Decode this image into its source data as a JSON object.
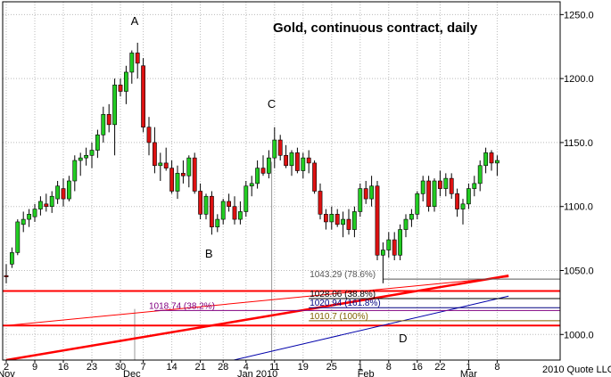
{
  "chart_data": {
    "type": "candlestick",
    "title": "Gold, continuous contract, daily",
    "copyright": "2010 Quote LLC",
    "y_axis": {
      "position": "right",
      "min": 980,
      "max": 1260,
      "ticks": [
        {
          "value": 1000,
          "label": "1000.0"
        },
        {
          "value": 1050,
          "label": "1050.0"
        },
        {
          "value": 1100,
          "label": "1100.0"
        },
        {
          "value": 1150,
          "label": "1150.0"
        },
        {
          "value": 1200,
          "label": "1200.0"
        },
        {
          "value": 1250,
          "label": "1250.0"
        }
      ]
    },
    "x_axis": {
      "day_labels": [
        {
          "i": 0,
          "label": "2"
        },
        {
          "i": 5,
          "label": "9"
        },
        {
          "i": 10,
          "label": "16"
        },
        {
          "i": 15,
          "label": "23"
        },
        {
          "i": 20,
          "label": "30"
        },
        {
          "i": 24,
          "label": "7"
        },
        {
          "i": 29,
          "label": "14"
        },
        {
          "i": 34,
          "label": "21"
        },
        {
          "i": 38,
          "label": "28"
        },
        {
          "i": 42,
          "label": "4"
        },
        {
          "i": 47,
          "label": "11"
        },
        {
          "i": 52,
          "label": "19"
        },
        {
          "i": 57,
          "label": "25"
        },
        {
          "i": 62,
          "label": "1"
        },
        {
          "i": 67,
          "label": "8"
        },
        {
          "i": 72,
          "label": "16"
        },
        {
          "i": 76,
          "label": "22"
        },
        {
          "i": 81,
          "label": "1"
        },
        {
          "i": 86,
          "label": "8"
        }
      ],
      "month_labels": [
        {
          "i": 0,
          "label": "Nov"
        },
        {
          "i": 22,
          "label": "Dec"
        },
        {
          "i": 44,
          "label": "Jan 2010"
        },
        {
          "i": 63,
          "label": "Feb"
        },
        {
          "i": 81,
          "label": "Mar"
        }
      ]
    },
    "candles": [
      [
        1046,
        1055,
        1040,
        1045
      ],
      [
        1055,
        1068,
        1052,
        1064
      ],
      [
        1064,
        1090,
        1062,
        1088
      ],
      [
        1086,
        1096,
        1080,
        1090
      ],
      [
        1090,
        1098,
        1084,
        1094
      ],
      [
        1092,
        1102,
        1088,
        1098
      ],
      [
        1098,
        1108,
        1093,
        1104
      ],
      [
        1102,
        1110,
        1096,
        1100
      ],
      [
        1100,
        1112,
        1095,
        1108
      ],
      [
        1106,
        1120,
        1102,
        1116
      ],
      [
        1114,
        1122,
        1100,
        1106
      ],
      [
        1106,
        1124,
        1104,
        1120
      ],
      [
        1120,
        1140,
        1112,
        1136
      ],
      [
        1136,
        1142,
        1124,
        1138
      ],
      [
        1138,
        1146,
        1132,
        1140
      ],
      [
        1140,
        1150,
        1130,
        1144
      ],
      [
        1144,
        1160,
        1138,
        1156
      ],
      [
        1156,
        1178,
        1150,
        1172
      ],
      [
        1172,
        1180,
        1158,
        1164
      ],
      [
        1164,
        1200,
        1140,
        1195
      ],
      [
        1195,
        1200,
        1186,
        1190
      ],
      [
        1190,
        1210,
        1180,
        1205
      ],
      [
        1205,
        1222,
        1196,
        1220
      ],
      [
        1220,
        1228,
        1200,
        1212
      ],
      [
        1210,
        1216,
        1158,
        1162
      ],
      [
        1162,
        1170,
        1140,
        1150
      ],
      [
        1150,
        1162,
        1126,
        1132
      ],
      [
        1132,
        1142,
        1120,
        1134
      ],
      [
        1134,
        1146,
        1128,
        1130
      ],
      [
        1130,
        1136,
        1110,
        1112
      ],
      [
        1112,
        1132,
        1106,
        1126
      ],
      [
        1126,
        1136,
        1118,
        1124
      ],
      [
        1124,
        1140,
        1115,
        1138
      ],
      [
        1138,
        1142,
        1110,
        1112
      ],
      [
        1112,
        1118,
        1090,
        1094
      ],
      [
        1094,
        1110,
        1090,
        1108
      ],
      [
        1108,
        1112,
        1078,
        1084
      ],
      [
        1084,
        1094,
        1080,
        1090
      ],
      [
        1090,
        1106,
        1086,
        1104
      ],
      [
        1104,
        1110,
        1096,
        1100
      ],
      [
        1100,
        1108,
        1086,
        1090
      ],
      [
        1090,
        1104,
        1086,
        1096
      ],
      [
        1096,
        1120,
        1092,
        1116
      ],
      [
        1116,
        1124,
        1108,
        1118
      ],
      [
        1118,
        1136,
        1114,
        1130
      ],
      [
        1130,
        1140,
        1124,
        1126
      ],
      [
        1126,
        1144,
        1122,
        1138
      ],
      [
        1138,
        1162,
        1130,
        1152
      ],
      [
        1152,
        1156,
        1136,
        1140
      ],
      [
        1140,
        1148,
        1130,
        1132
      ],
      [
        1132,
        1144,
        1124,
        1142
      ],
      [
        1142,
        1146,
        1126,
        1128
      ],
      [
        1128,
        1142,
        1122,
        1138
      ],
      [
        1138,
        1144,
        1126,
        1134
      ],
      [
        1134,
        1136,
        1110,
        1112
      ],
      [
        1112,
        1118,
        1090,
        1094
      ],
      [
        1094,
        1098,
        1082,
        1088
      ],
      [
        1088,
        1100,
        1082,
        1094
      ],
      [
        1094,
        1098,
        1084,
        1086
      ],
      [
        1086,
        1096,
        1076,
        1090
      ],
      [
        1090,
        1098,
        1078,
        1082
      ],
      [
        1082,
        1100,
        1076,
        1096
      ],
      [
        1096,
        1118,
        1092,
        1114
      ],
      [
        1114,
        1120,
        1102,
        1106
      ],
      [
        1106,
        1124,
        1100,
        1116
      ],
      [
        1116,
        1120,
        1058,
        1062
      ],
      [
        1062,
        1072,
        1040,
        1066
      ],
      [
        1066,
        1080,
        1060,
        1074
      ],
      [
        1074,
        1080,
        1058,
        1062
      ],
      [
        1062,
        1086,
        1058,
        1082
      ],
      [
        1082,
        1094,
        1076,
        1090
      ],
      [
        1090,
        1098,
        1084,
        1094
      ],
      [
        1094,
        1112,
        1090,
        1110
      ],
      [
        1110,
        1124,
        1104,
        1120
      ],
      [
        1120,
        1124,
        1096,
        1100
      ],
      [
        1100,
        1122,
        1096,
        1120
      ],
      [
        1120,
        1128,
        1108,
        1114
      ],
      [
        1114,
        1126,
        1108,
        1122
      ],
      [
        1122,
        1126,
        1106,
        1110
      ],
      [
        1110,
        1114,
        1092,
        1098
      ],
      [
        1098,
        1106,
        1086,
        1102
      ],
      [
        1102,
        1118,
        1098,
        1114
      ],
      [
        1114,
        1124,
        1108,
        1118
      ],
      [
        1118,
        1136,
        1112,
        1132
      ],
      [
        1132,
        1146,
        1126,
        1142
      ],
      [
        1142,
        1144,
        1128,
        1134
      ],
      [
        1134,
        1140,
        1124,
        1136
      ]
    ],
    "horizontal_lines": [
      {
        "label": "1043.29 (78.6%)",
        "value": 1043.29,
        "color": "#555555",
        "width": 1
      },
      {
        "label": "1028.06 (38.8%)",
        "value": 1028.06,
        "color": "#000000",
        "width": 1
      },
      {
        "label": "1020.94 (161.8%)",
        "value": 1020.94,
        "color": "#000080",
        "width": 1
      },
      {
        "label": "1018.74 (38.2%)",
        "value": 1018.74,
        "color": "#800080",
        "width": 1
      },
      {
        "label": "1010.7 (100%)",
        "value": 1010.7,
        "color": "#806000",
        "width": 1
      }
    ],
    "support_lines": [
      {
        "value": 1034,
        "color": "#ff0000",
        "width": 2
      },
      {
        "value": 1007,
        "color": "#ff0000",
        "width": 2
      }
    ],
    "trend_lines": [
      {
        "from": [
          0,
          980
        ],
        "to": [
          88,
          1046
        ],
        "color": "#ff0000",
        "width": 2.5
      },
      {
        "from": [
          0,
          1007
        ],
        "to": [
          88,
          1045
        ],
        "color": "#ff0000",
        "width": 1
      },
      {
        "from": [
          36,
          976
        ],
        "to": [
          88,
          1030
        ],
        "color": "#0000aa",
        "width": 1
      }
    ],
    "vertical_lines": [
      {
        "i": 22.5,
        "from": 1020,
        "color": "#999999"
      },
      {
        "i": 46.5,
        "from": 1135,
        "color": "#999999"
      }
    ],
    "wave_labels": [
      {
        "label": "A",
        "i": 22.5,
        "value": 1242
      },
      {
        "label": "B",
        "i": 35.5,
        "value": 1060
      },
      {
        "label": "C",
        "i": 46.5,
        "value": 1177
      },
      {
        "label": "D",
        "i": 69.5,
        "value": 994
      }
    ],
    "colors": {
      "up": "#22cc22",
      "down": "#dd1111",
      "grid": "#bbbbbb",
      "frame": "#000000"
    }
  }
}
